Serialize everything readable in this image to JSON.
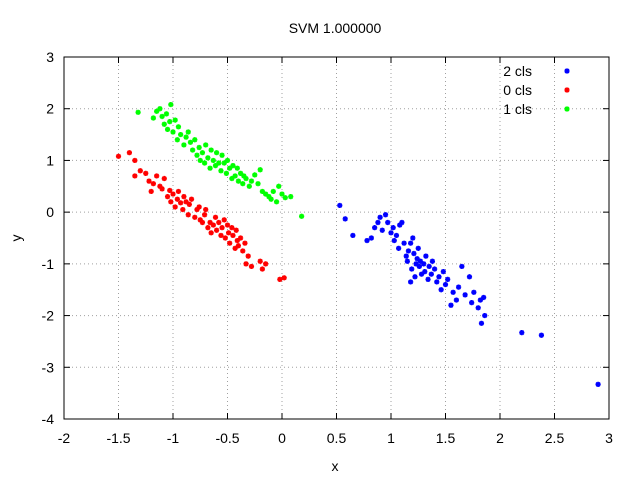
{
  "chart_data": {
    "type": "scatter",
    "title": "SVM 1.000000",
    "xlabel": "x",
    "ylabel": "y",
    "xlim": [
      -2,
      3
    ],
    "ylim": [
      -4,
      3
    ],
    "xticks": [
      -2,
      -1.5,
      -1,
      -0.5,
      0,
      0.5,
      1,
      1.5,
      2,
      2.5,
      3
    ],
    "yticks": [
      -4,
      -3,
      -2,
      -1,
      0,
      1,
      2,
      3
    ],
    "xtick_labels": [
      "-2",
      "-1.5",
      "-1",
      "-0.5",
      "0",
      "0.5",
      "1",
      "1.5",
      "2",
      "2.5",
      "3"
    ],
    "ytick_labels": [
      "-4",
      "-3",
      "-2",
      "-1",
      "0",
      "1",
      "2",
      "3"
    ],
    "grid": true,
    "legend_position": "top-right",
    "series": [
      {
        "name": "2 cls",
        "color": "#0000ff",
        "points": [
          [
            0.53,
            0.13
          ],
          [
            0.58,
            -0.13
          ],
          [
            0.65,
            -0.45
          ],
          [
            0.78,
            -0.55
          ],
          [
            0.82,
            -0.5
          ],
          [
            0.85,
            -0.3
          ],
          [
            0.88,
            -0.2
          ],
          [
            0.9,
            -0.1
          ],
          [
            0.92,
            -0.35
          ],
          [
            0.95,
            -0.05
          ],
          [
            0.97,
            -0.2
          ],
          [
            1.0,
            -0.4
          ],
          [
            1.02,
            -0.3
          ],
          [
            1.03,
            -0.55
          ],
          [
            1.05,
            -0.45
          ],
          [
            1.07,
            -0.7
          ],
          [
            1.08,
            -0.25
          ],
          [
            1.1,
            -0.2
          ],
          [
            1.12,
            -0.6
          ],
          [
            1.14,
            -0.85
          ],
          [
            1.15,
            -0.95
          ],
          [
            1.16,
            -0.75
          ],
          [
            1.18,
            -0.6
          ],
          [
            1.19,
            -1.1
          ],
          [
            1.2,
            -0.5
          ],
          [
            1.21,
            -0.8
          ],
          [
            1.22,
            -1.25
          ],
          [
            1.23,
            -1.0
          ],
          [
            1.24,
            -0.9
          ],
          [
            1.25,
            -0.7
          ],
          [
            1.26,
            -1.05
          ],
          [
            1.27,
            -0.95
          ],
          [
            1.28,
            -1.2
          ],
          [
            1.3,
            -1.0
          ],
          [
            1.31,
            -1.15
          ],
          [
            1.32,
            -0.85
          ],
          [
            1.34,
            -1.3
          ],
          [
            1.35,
            -1.05
          ],
          [
            1.37,
            -1.2
          ],
          [
            1.38,
            -0.95
          ],
          [
            1.4,
            -1.1
          ],
          [
            1.42,
            -1.35
          ],
          [
            1.44,
            -1.25
          ],
          [
            1.46,
            -1.5
          ],
          [
            1.48,
            -1.15
          ],
          [
            1.5,
            -1.4
          ],
          [
            1.52,
            -1.3
          ],
          [
            1.55,
            -1.8
          ],
          [
            1.57,
            -1.55
          ],
          [
            1.6,
            -1.7
          ],
          [
            1.62,
            -1.45
          ],
          [
            1.65,
            -1.05
          ],
          [
            1.68,
            -1.6
          ],
          [
            1.72,
            -1.25
          ],
          [
            1.76,
            -1.55
          ],
          [
            1.8,
            -1.85
          ],
          [
            1.82,
            -1.7
          ],
          [
            1.85,
            -1.65
          ],
          [
            1.83,
            -2.15
          ],
          [
            1.86,
            -2.0
          ],
          [
            2.2,
            -2.33
          ],
          [
            2.38,
            -2.38
          ],
          [
            2.9,
            -3.33
          ],
          [
            1.74,
            -1.75
          ],
          [
            1.18,
            -1.35
          ]
        ]
      },
      {
        "name": "0 cls",
        "color": "#ff0000",
        "points": [
          [
            -1.5,
            1.08
          ],
          [
            -1.4,
            1.15
          ],
          [
            -1.35,
            1.0
          ],
          [
            -1.35,
            0.7
          ],
          [
            -1.3,
            0.8
          ],
          [
            -1.25,
            0.75
          ],
          [
            -1.22,
            0.6
          ],
          [
            -1.2,
            0.4
          ],
          [
            -1.18,
            0.55
          ],
          [
            -1.15,
            0.7
          ],
          [
            -1.12,
            0.5
          ],
          [
            -1.1,
            0.45
          ],
          [
            -1.08,
            0.65
          ],
          [
            -1.05,
            0.3
          ],
          [
            -1.03,
            0.42
          ],
          [
            -1.02,
            0.2
          ],
          [
            -1.0,
            0.35
          ],
          [
            -0.98,
            0.1
          ],
          [
            -0.96,
            0.25
          ],
          [
            -0.95,
            0.4
          ],
          [
            -0.93,
            0.18
          ],
          [
            -0.91,
            0.05
          ],
          [
            -0.9,
            0.3
          ],
          [
            -0.88,
            0.2
          ],
          [
            -0.86,
            -0.05
          ],
          [
            -0.85,
            0.15
          ],
          [
            -0.83,
            0.25
          ],
          [
            -0.8,
            -0.1
          ],
          [
            -0.78,
            0.05
          ],
          [
            -0.76,
            0.1
          ],
          [
            -0.75,
            -0.15
          ],
          [
            -0.73,
            -0.2
          ],
          [
            -0.71,
            -0.05
          ],
          [
            -0.7,
            0.05
          ],
          [
            -0.68,
            -0.3
          ],
          [
            -0.66,
            -0.2
          ],
          [
            -0.65,
            -0.4
          ],
          [
            -0.63,
            -0.25
          ],
          [
            -0.61,
            -0.1
          ],
          [
            -0.6,
            -0.35
          ],
          [
            -0.58,
            -0.2
          ],
          [
            -0.56,
            -0.45
          ],
          [
            -0.55,
            -0.3
          ],
          [
            -0.53,
            -0.15
          ],
          [
            -0.52,
            -0.5
          ],
          [
            -0.5,
            -0.25
          ],
          [
            -0.49,
            -0.4
          ],
          [
            -0.48,
            -0.6
          ],
          [
            -0.46,
            -0.3
          ],
          [
            -0.45,
            -0.45
          ],
          [
            -0.43,
            -0.7
          ],
          [
            -0.42,
            -0.35
          ],
          [
            -0.41,
            -0.55
          ],
          [
            -0.4,
            -0.65
          ],
          [
            -0.38,
            -0.5
          ],
          [
            -0.36,
            -0.75
          ],
          [
            -0.34,
            -0.6
          ],
          [
            -0.33,
            -1.0
          ],
          [
            -0.31,
            -0.85
          ],
          [
            -0.28,
            -1.05
          ],
          [
            -0.2,
            -0.95
          ],
          [
            -0.18,
            -1.1
          ],
          [
            -0.15,
            -1.0
          ],
          [
            -0.02,
            -1.3
          ],
          [
            0.02,
            -1.27
          ]
        ]
      },
      {
        "name": "1 cls",
        "color": "#00ff00",
        "points": [
          [
            -1.32,
            1.93
          ],
          [
            -1.18,
            1.82
          ],
          [
            -1.15,
            1.95
          ],
          [
            -1.12,
            2.0
          ],
          [
            -1.1,
            1.85
          ],
          [
            -1.08,
            1.7
          ],
          [
            -1.06,
            1.9
          ],
          [
            -1.05,
            1.6
          ],
          [
            -1.03,
            1.75
          ],
          [
            -1.02,
            2.08
          ],
          [
            -1.0,
            1.55
          ],
          [
            -0.98,
            1.78
          ],
          [
            -0.96,
            1.4
          ],
          [
            -0.95,
            1.65
          ],
          [
            -0.93,
            1.5
          ],
          [
            -0.9,
            1.3
          ],
          [
            -0.88,
            1.45
          ],
          [
            -0.86,
            1.55
          ],
          [
            -0.84,
            1.35
          ],
          [
            -0.82,
            1.2
          ],
          [
            -0.8,
            1.4
          ],
          [
            -0.78,
            1.1
          ],
          [
            -0.76,
            1.25
          ],
          [
            -0.75,
            1.0
          ],
          [
            -0.73,
            1.15
          ],
          [
            -0.71,
            0.95
          ],
          [
            -0.7,
            1.3
          ],
          [
            -0.68,
            1.05
          ],
          [
            -0.66,
            0.85
          ],
          [
            -0.65,
            1.2
          ],
          [
            -0.63,
            1.0
          ],
          [
            -0.61,
            0.9
          ],
          [
            -0.6,
            1.15
          ],
          [
            -0.58,
            0.95
          ],
          [
            -0.56,
            0.8
          ],
          [
            -0.55,
            1.1
          ],
          [
            -0.53,
            0.95
          ],
          [
            -0.51,
            0.75
          ],
          [
            -0.5,
            1.0
          ],
          [
            -0.48,
            0.85
          ],
          [
            -0.46,
            0.65
          ],
          [
            -0.45,
            0.9
          ],
          [
            -0.43,
            0.7
          ],
          [
            -0.41,
            0.85
          ],
          [
            -0.4,
            0.6
          ],
          [
            -0.38,
            0.75
          ],
          [
            -0.36,
            0.55
          ],
          [
            -0.35,
            0.7
          ],
          [
            -0.33,
            0.65
          ],
          [
            -0.3,
            0.5
          ],
          [
            -0.28,
            0.6
          ],
          [
            -0.25,
            0.72
          ],
          [
            -0.22,
            0.55
          ],
          [
            -0.2,
            0.82
          ],
          [
            -0.18,
            0.4
          ],
          [
            -0.15,
            0.35
          ],
          [
            -0.12,
            0.3
          ],
          [
            -0.1,
            0.25
          ],
          [
            -0.08,
            0.4
          ],
          [
            -0.05,
            0.2
          ],
          [
            -0.03,
            0.5
          ],
          [
            0.0,
            0.35
          ],
          [
            0.03,
            0.28
          ],
          [
            0.08,
            0.3
          ],
          [
            0.18,
            -0.08
          ]
        ]
      }
    ]
  }
}
